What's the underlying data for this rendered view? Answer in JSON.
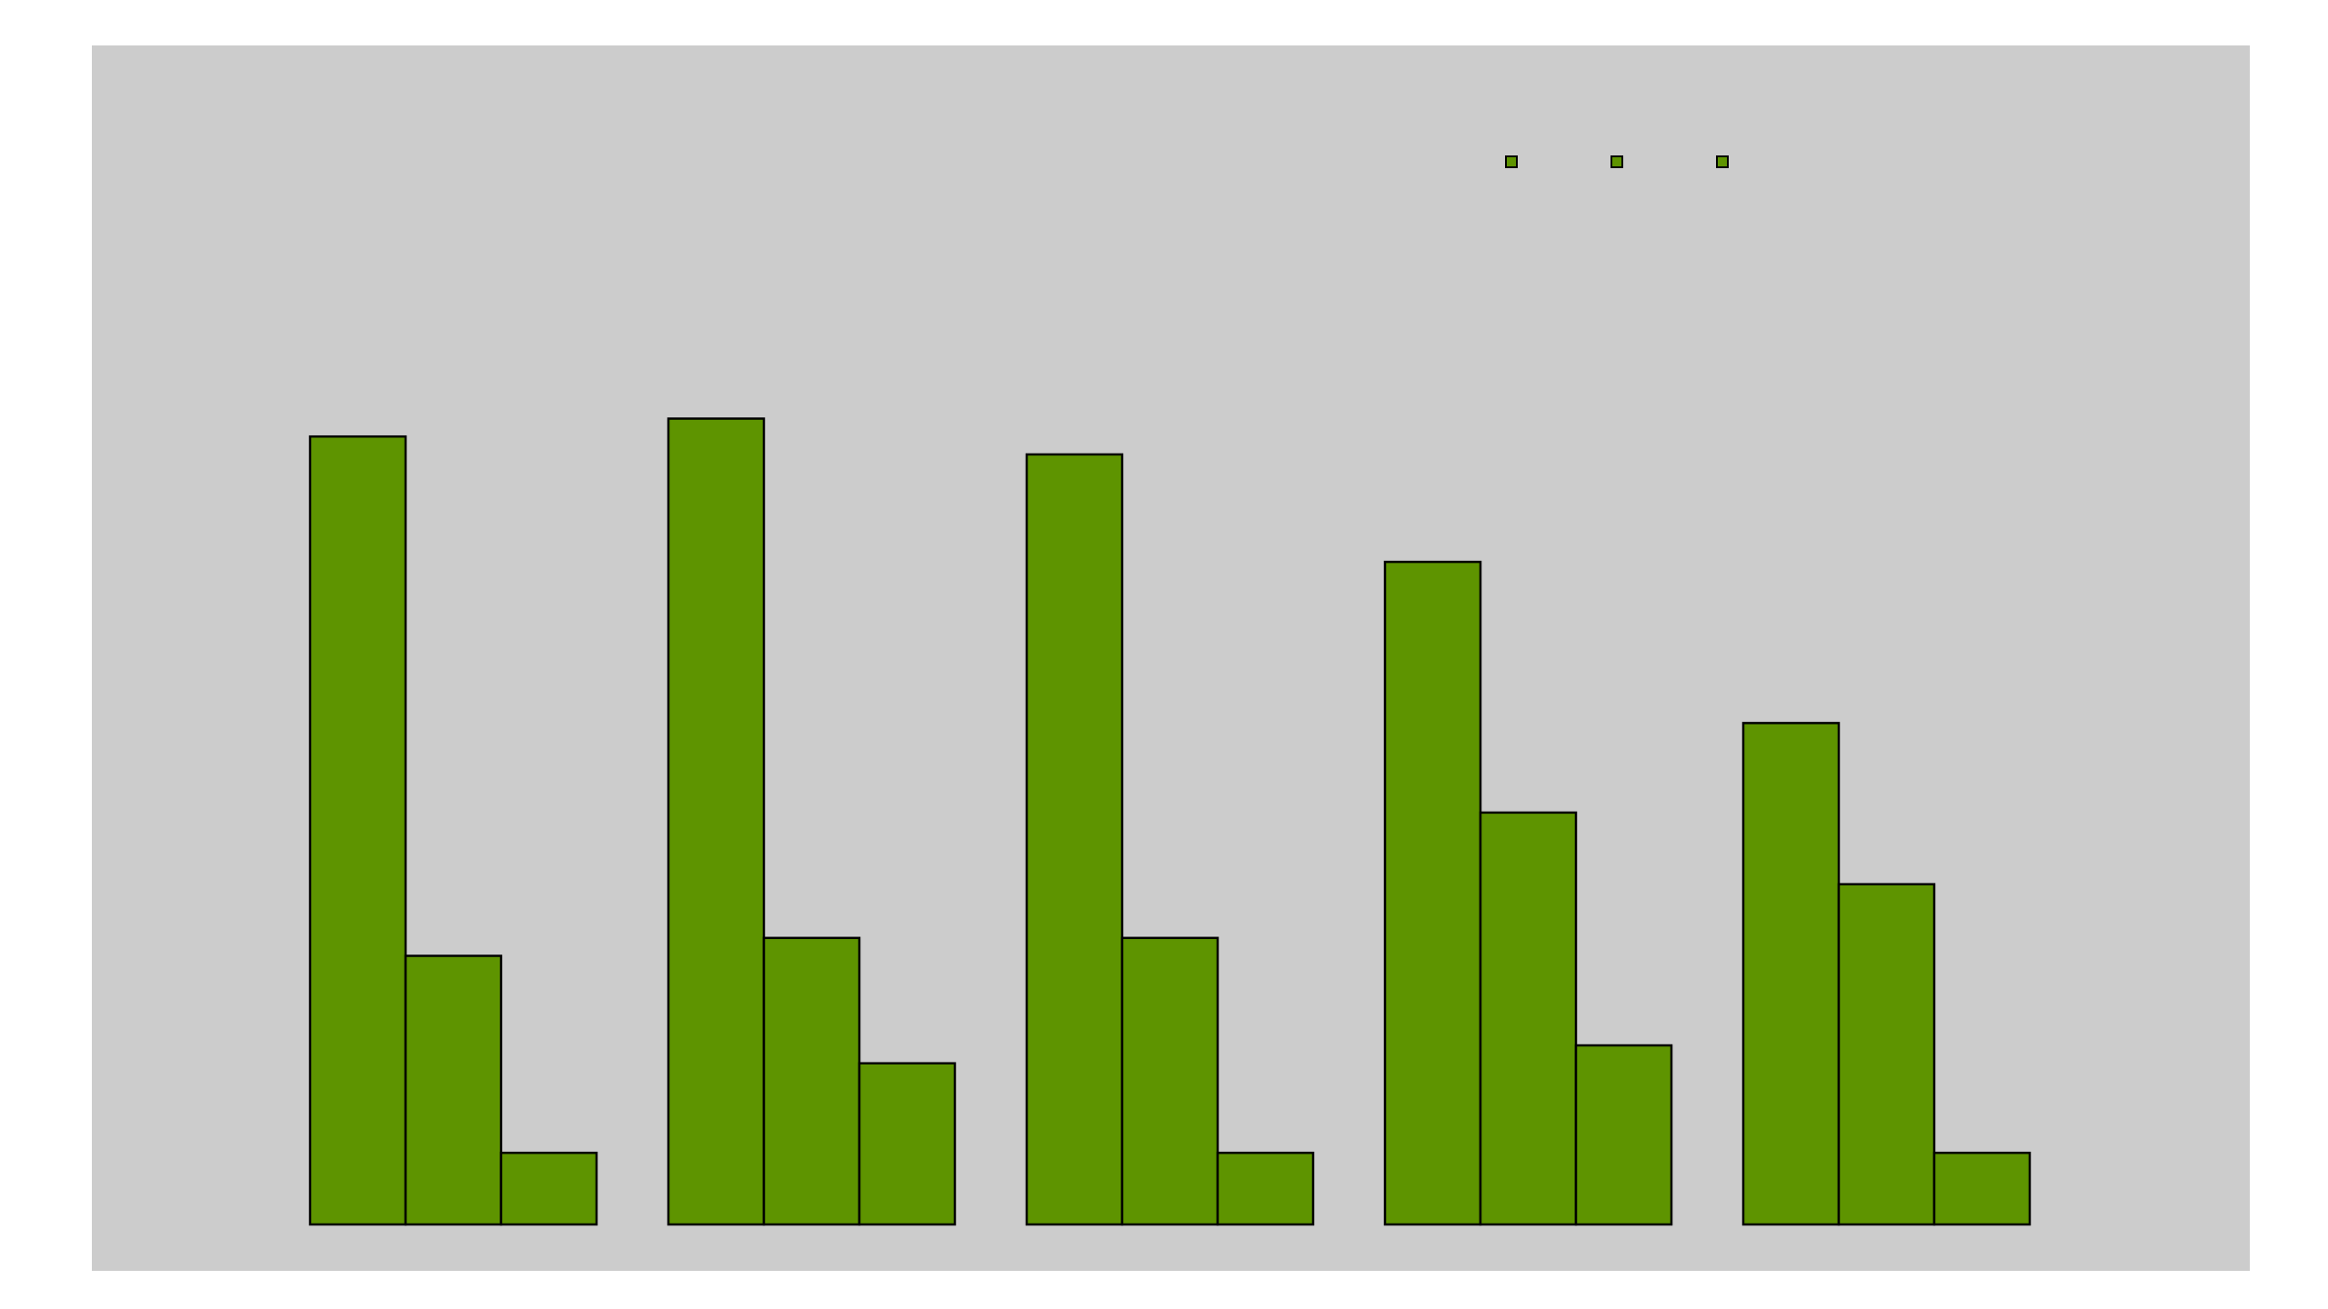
{
  "colors": {
    "page_background": "#ffffff",
    "plot_background": "#cccccc",
    "bar_fill": "#5e9400",
    "bar_stroke": "#000000"
  },
  "legend": {
    "placement": "top-right",
    "entries": [
      {
        "swatch_color": "#5e9400"
      },
      {
        "swatch_color": "#5e9400"
      },
      {
        "swatch_color": "#5e9400"
      }
    ]
  },
  "chart_data": {
    "type": "bar",
    "title": "",
    "xlabel": "",
    "ylabel": "",
    "categories": [
      "",
      "",
      "",
      "",
      ""
    ],
    "ylim": [
      0,
      100
    ],
    "grid": false,
    "axes_visible": false,
    "series": [
      {
        "values": [
          88,
          90,
          86,
          74,
          56
        ]
      },
      {
        "values": [
          30,
          32,
          32,
          46,
          38
        ]
      },
      {
        "values": [
          8,
          18,
          8,
          20,
          8
        ]
      }
    ]
  }
}
